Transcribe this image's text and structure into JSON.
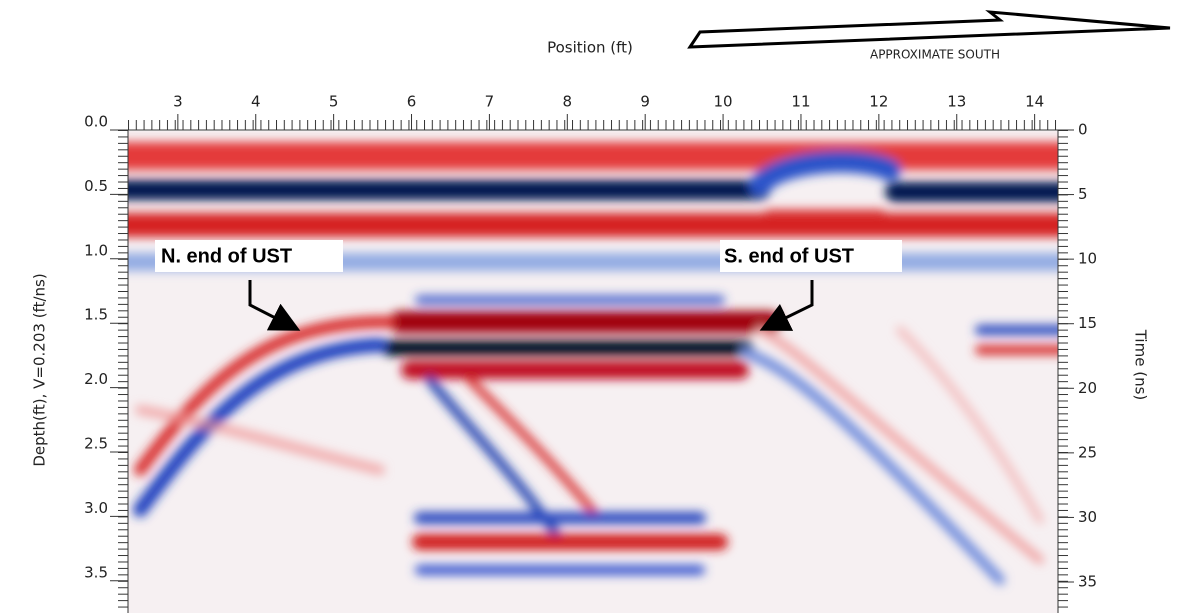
{
  "chart_data": {
    "type": "radargram",
    "x_label": "Position (ft)",
    "y_label": "Depth(ft), V=0.203 (ft/ns)",
    "y2_label": "Time (ns)",
    "direction_label": "APPROXIMATE SOUTH",
    "xlim": [
      2.36,
      14.3
    ],
    "xticks": [
      3,
      4,
      5,
      6,
      7,
      8,
      9,
      10,
      11,
      12,
      13,
      14
    ],
    "ylim": [
      0,
      3.75
    ],
    "yticks": [
      {
        "value": 0,
        "label": "0.0"
      },
      {
        "value": 0.5,
        "label": "0.5"
      },
      {
        "value": 1,
        "label": "1.0"
      },
      {
        "value": 1.5,
        "label": "1.5"
      },
      {
        "value": 2,
        "label": "2.0"
      },
      {
        "value": 2.5,
        "label": "2.5"
      },
      {
        "value": 3,
        "label": "3.0"
      },
      {
        "value": 3.5,
        "label": "3.5"
      }
    ],
    "y2lim": [
      0,
      37.4
    ],
    "y2ticks": [
      0,
      5,
      10,
      15,
      20,
      25,
      30,
      35
    ],
    "annotations": [
      {
        "text": "N. end of UST"
      },
      {
        "text": "S. end of UST"
      }
    ]
  }
}
